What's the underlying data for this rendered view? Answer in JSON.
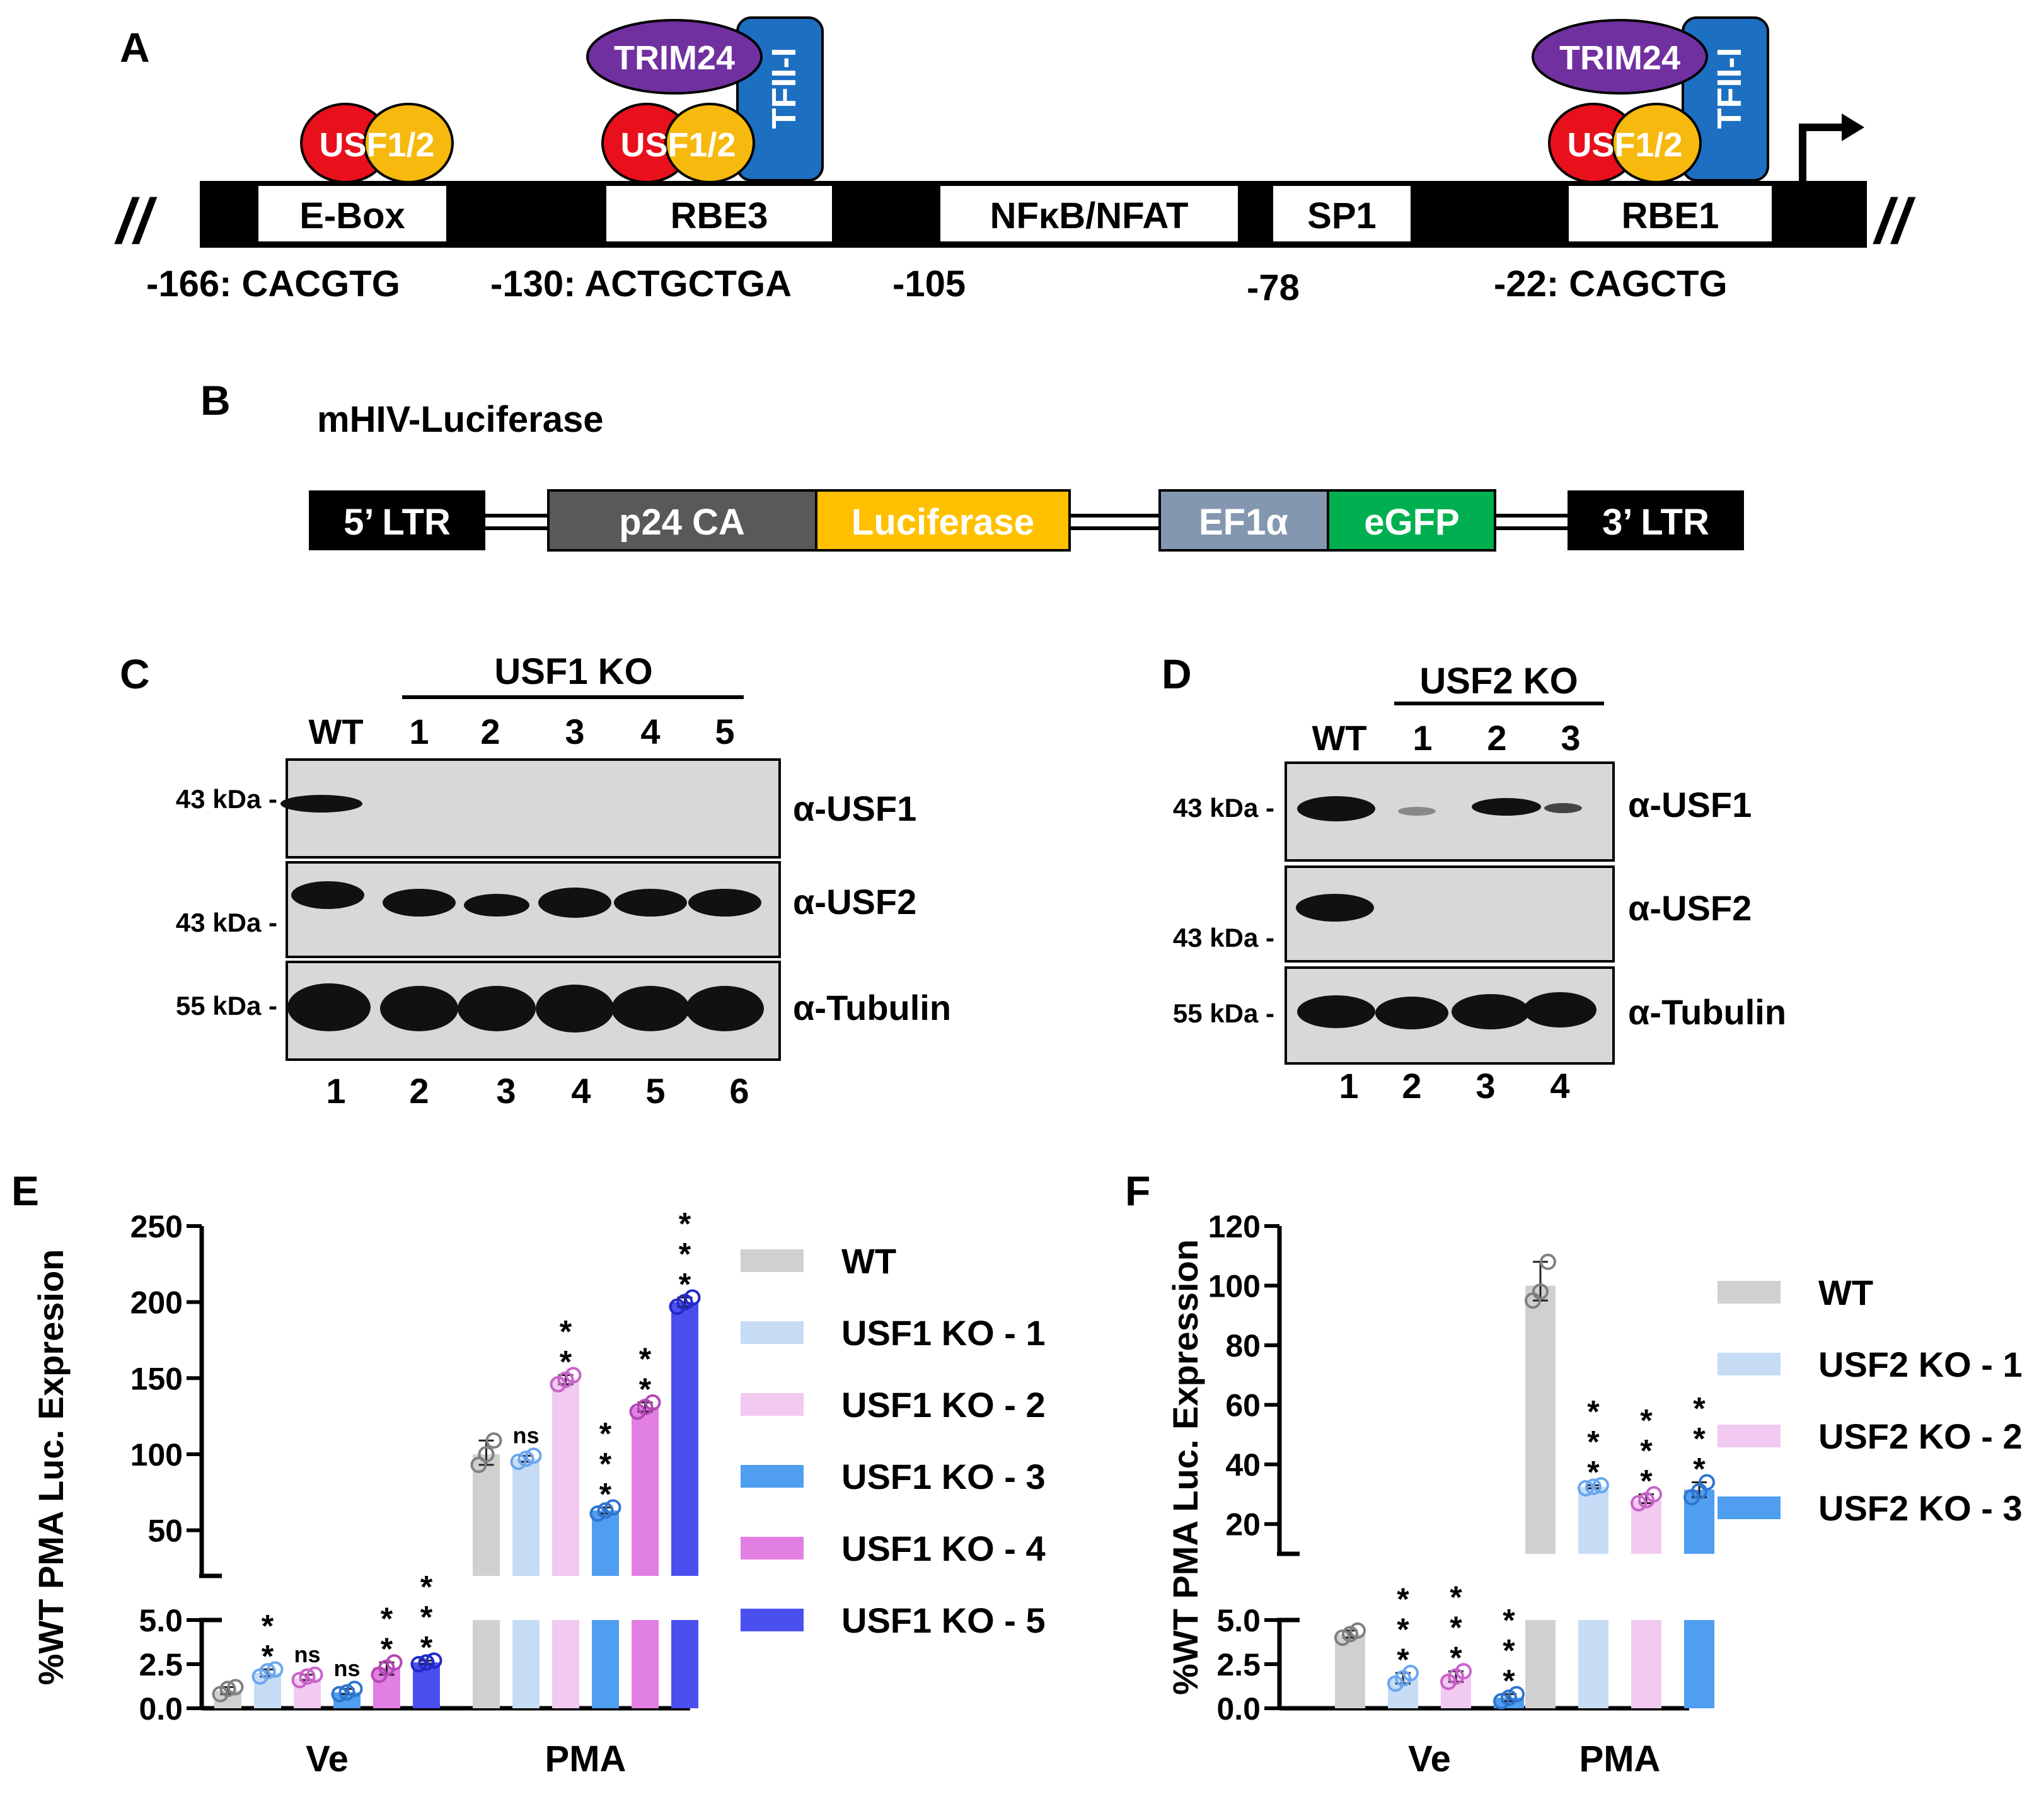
{
  "panel_letters": {
    "a": "A",
    "b": "B",
    "c": "C",
    "d": "D",
    "e": "E",
    "f": "F"
  },
  "colors": {
    "black": "#000000",
    "usf_red": "#e8101c",
    "usf_yellow": "#f7b90d",
    "trim_purple": "#7030a0",
    "tfii_blue": "#1d6fc2",
    "p24_grey": "#595959",
    "luciferase_yellow": "#ffc000",
    "ef1a_grey": "#8497b0",
    "egfp_green": "#00b050",
    "wt_grey": "#d0d0d0",
    "ko1_lightblue": "#c6dcf5",
    "ko2_lightpink": "#f2c9f0",
    "ko3_blue": "#4f9ef0",
    "ko4_magenta": "#e27fe2",
    "ko5_darkblue": "#4a50f0"
  },
  "panelA": {
    "protein_usf": "USF1/2",
    "protein_trim": "TRIM24",
    "protein_tfii": "TFII-I",
    "sites": [
      "E-Box",
      "RBE3",
      "NFκB/NFAT",
      "SP1",
      "RBE1"
    ],
    "positions": [
      "-166: CACGTG",
      "-130: ACTGCTGA",
      "-105",
      "-78",
      "-22: CAGCTG"
    ],
    "break_mark": "//"
  },
  "panelB": {
    "title": "mHIV-Luciferase",
    "segments": [
      "5’ LTR",
      "p24 CA",
      "Luciferase",
      "EF1α",
      "eGFP",
      "3’ LTR"
    ]
  },
  "panelC": {
    "group_label": "USF1 KO",
    "lane_headers": [
      "WT",
      "1",
      "2",
      "3",
      "4",
      "5"
    ],
    "lane_numbers": [
      "1",
      "2",
      "3",
      "4",
      "5",
      "6"
    ],
    "blots": [
      {
        "antibody": "α-USF1",
        "marker": "43 kDa -"
      },
      {
        "antibody": "α-USF2",
        "marker": "43 kDa -"
      },
      {
        "antibody": "α-Tubulin",
        "marker": "55 kDa -"
      }
    ]
  },
  "panelD": {
    "group_label": "USF2 KO",
    "lane_headers": [
      "WT",
      "1",
      "2",
      "3"
    ],
    "lane_numbers": [
      "1",
      "2",
      "3",
      "4"
    ],
    "blots": [
      {
        "antibody": "α-USF1",
        "marker": "43 kDa -"
      },
      {
        "antibody": "α-USF2",
        "marker": "43 kDa -"
      },
      {
        "antibody": "α-Tubulin",
        "marker": "55 kDa -"
      }
    ]
  },
  "chart_data": [
    {
      "type": "bar",
      "panel": "E",
      "ylabel": "%WT PMA Luc. Expresion",
      "categories": [
        "Ve",
        "PMA"
      ],
      "axis_break": true,
      "lower_ylim": [
        0,
        5
      ],
      "upper_ylim": [
        20,
        250
      ],
      "lower_ticks": [
        "0.0",
        "2.5",
        "5.0"
      ],
      "upper_ticks": [
        "50",
        "100",
        "150",
        "200",
        "250"
      ],
      "series": [
        {
          "name": "WT",
          "values": [
            1.0,
            100
          ],
          "sig": [
            "",
            ""
          ]
        },
        {
          "name": "USF1 KO - 1",
          "values": [
            2.0,
            97
          ],
          "sig": [
            "* *",
            "ns"
          ]
        },
        {
          "name": "USF1 KO - 2",
          "values": [
            1.7,
            149
          ],
          "sig": [
            "ns",
            "* *"
          ]
        },
        {
          "name": "USF1 KO - 3",
          "values": [
            0.9,
            63
          ],
          "sig": [
            "ns",
            "* * *"
          ]
        },
        {
          "name": "USF1 KO - 4",
          "values": [
            2.3,
            131
          ],
          "sig": [
            "* *",
            "* *"
          ]
        },
        {
          "name": "USF1 KO - 5",
          "values": [
            2.6,
            200
          ],
          "sig": [
            "* * *",
            "* * *"
          ]
        }
      ],
      "points": [
        [
          [
            0.8,
            1.1,
            1.2
          ],
          [
            93,
            100,
            109
          ]
        ],
        [
          [
            1.8,
            2.1,
            2.2
          ],
          [
            95,
            97,
            99
          ]
        ],
        [
          [
            1.6,
            1.8,
            1.9
          ],
          [
            146,
            149,
            152
          ]
        ],
        [
          [
            0.8,
            0.9,
            1.1
          ],
          [
            61,
            63,
            65
          ]
        ],
        [
          [
            1.9,
            2.3,
            2.6
          ],
          [
            128,
            131,
            134
          ]
        ],
        [
          [
            2.5,
            2.6,
            2.7
          ],
          [
            197,
            200,
            203
          ]
        ]
      ]
    },
    {
      "type": "bar",
      "panel": "F",
      "ylabel": "%WT PMA Luc. Expression",
      "categories": [
        "Ve",
        "PMA"
      ],
      "axis_break": true,
      "lower_ylim": [
        0,
        5
      ],
      "upper_ylim": [
        10,
        120
      ],
      "lower_ticks": [
        "0.0",
        "2.5",
        "5.0"
      ],
      "upper_ticks": [
        "20",
        "40",
        "60",
        "80",
        "100",
        "120"
      ],
      "series": [
        {
          "name": "WT",
          "values": [
            4.2,
            100
          ],
          "sig": [
            "",
            ""
          ]
        },
        {
          "name": "USF2 KO - 1",
          "values": [
            1.7,
            32.5
          ],
          "sig": [
            "* * *",
            "* * *"
          ]
        },
        {
          "name": "USF2 KO - 2",
          "values": [
            1.8,
            28
          ],
          "sig": [
            "* * *",
            "* * *"
          ]
        },
        {
          "name": "USF2 KO - 3",
          "values": [
            0.6,
            31.5
          ],
          "sig": [
            "* * *",
            "* * *"
          ]
        }
      ],
      "points": [
        [
          [
            4.0,
            4.2,
            4.4
          ],
          [
            95,
            98,
            108
          ]
        ],
        [
          [
            1.4,
            1.7,
            2.0
          ],
          [
            32,
            32.5,
            33
          ]
        ],
        [
          [
            1.5,
            1.8,
            2.1
          ],
          [
            27,
            28,
            30
          ]
        ],
        [
          [
            0.4,
            0.6,
            0.8
          ],
          [
            29,
            31,
            34
          ]
        ]
      ]
    }
  ]
}
